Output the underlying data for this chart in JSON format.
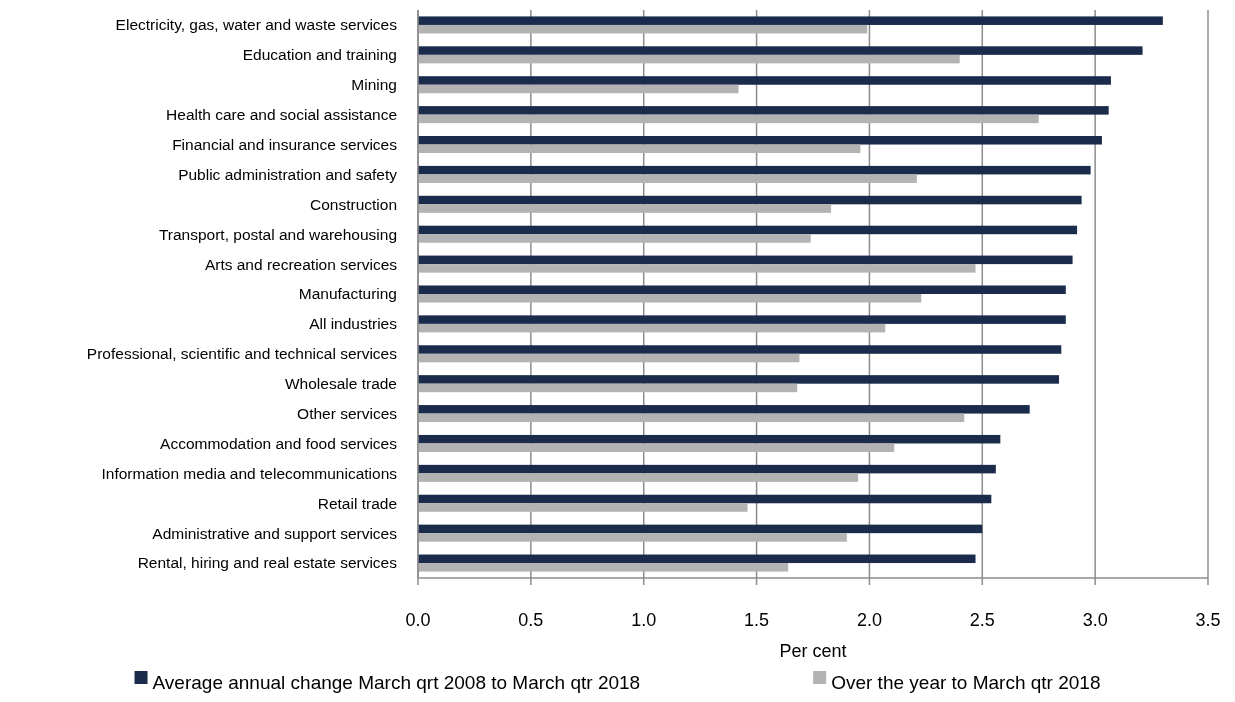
{
  "chart_data": {
    "type": "bar",
    "orientation": "horizontal",
    "xlabel": "Per cent",
    "categories": [
      "Electricity, gas, water and waste services",
      "Education and training",
      "Mining",
      "Health care and social assistance",
      "Financial and insurance services",
      "Public administration and safety",
      "Construction",
      "Transport, postal and warehousing",
      "Arts and recreation services",
      "Manufacturing",
      "All industries",
      "Professional, scientific and technical services",
      "Wholesale trade",
      "Other services",
      "Accommodation and food services",
      "Information media and telecommunications",
      "Retail trade",
      "Administrative and support services",
      "Rental, hiring and real estate services"
    ],
    "series": [
      {
        "name": "Average annual change March qrt 2008 to March qtr 2018",
        "color": "#1a2b4b",
        "values": [
          3.3,
          3.21,
          3.07,
          3.06,
          3.03,
          2.98,
          2.94,
          2.92,
          2.9,
          2.87,
          2.87,
          2.85,
          2.84,
          2.71,
          2.58,
          2.56,
          2.54,
          2.5,
          2.47
        ]
      },
      {
        "name": "Over the year to March qtr 2018",
        "color": "#b3b3b3",
        "values": [
          1.99,
          2.4,
          1.42,
          2.75,
          1.96,
          2.21,
          1.83,
          1.74,
          2.47,
          2.23,
          2.07,
          1.69,
          1.68,
          2.42,
          2.11,
          1.95,
          1.46,
          1.9,
          1.64
        ]
      }
    ],
    "xlim": [
      0,
      3.5
    ],
    "xticks": [
      {
        "value": 0,
        "label": "0.0"
      },
      {
        "value": 0.5,
        "label": "0.5"
      },
      {
        "value": 1,
        "label": "1.0"
      },
      {
        "value": 1.5,
        "label": "1.5"
      },
      {
        "value": 2,
        "label": "2.0"
      },
      {
        "value": 2.5,
        "label": "2.5"
      },
      {
        "value": 3,
        "label": "3.0"
      },
      {
        "value": 3.5,
        "label": "3.5"
      }
    ],
    "grid": "x",
    "legend": "bottom"
  }
}
